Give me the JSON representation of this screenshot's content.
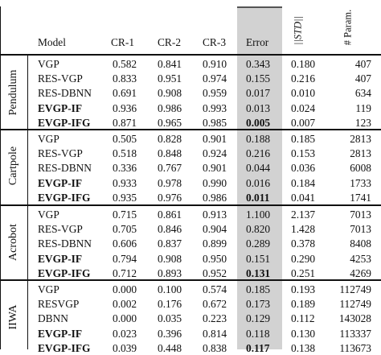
{
  "header": {
    "model": "Model",
    "cr1": "CR-1",
    "cr2": "CR-2",
    "cr3": "CR-3",
    "error": "Error",
    "std": "||STD||",
    "params": "# Param."
  },
  "groups": [
    {
      "name": "Pendulum",
      "rows": [
        {
          "model": "VGP",
          "bold": false,
          "cr1": "0.582",
          "cr2": "0.841",
          "cr3": "0.910",
          "error": "0.343",
          "error_bold": false,
          "std": "0.180",
          "params": "407"
        },
        {
          "model": "RES-VGP",
          "bold": false,
          "cr1": "0.833",
          "cr2": "0.951",
          "cr3": "0.974",
          "error": "0.155",
          "error_bold": false,
          "std": "0.216",
          "params": "407"
        },
        {
          "model": "RES-DBNN",
          "bold": false,
          "cr1": "0.691",
          "cr2": "0.908",
          "cr3": "0.959",
          "error": "0.017",
          "error_bold": false,
          "std": "0.010",
          "params": "634"
        },
        {
          "model": "EVGP-IF",
          "bold": true,
          "cr1": "0.936",
          "cr2": "0.986",
          "cr3": "0.993",
          "error": "0.013",
          "error_bold": false,
          "std": "0.024",
          "params": "119"
        },
        {
          "model": "EVGP-IFG",
          "bold": true,
          "cr1": "0.871",
          "cr2": "0.965",
          "cr3": "0.985",
          "error": "0.005",
          "error_bold": true,
          "std": "0.007",
          "params": "123"
        }
      ]
    },
    {
      "name": "Cartpole",
      "rows": [
        {
          "model": "VGP",
          "bold": false,
          "cr1": "0.505",
          "cr2": "0.828",
          "cr3": "0.901",
          "error": "0.188",
          "error_bold": false,
          "std": "0.185",
          "params": "2813"
        },
        {
          "model": "RES-VGP",
          "bold": false,
          "cr1": "0.518",
          "cr2": "0.848",
          "cr3": "0.924",
          "error": "0.216",
          "error_bold": false,
          "std": "0.153",
          "params": "2813"
        },
        {
          "model": "RES-DBNN",
          "bold": false,
          "cr1": "0.336",
          "cr2": "0.767",
          "cr3": "0.901",
          "error": "0.044",
          "error_bold": false,
          "std": "0.036",
          "params": "6008"
        },
        {
          "model": "EVGP-IF",
          "bold": true,
          "cr1": "0.933",
          "cr2": "0.978",
          "cr3": "0.990",
          "error": "0.016",
          "error_bold": false,
          "std": "0.184",
          "params": "1733"
        },
        {
          "model": "EVGP-IFG",
          "bold": true,
          "cr1": "0.935",
          "cr2": "0.976",
          "cr3": "0.986",
          "error": "0.011",
          "error_bold": true,
          "std": "0.041",
          "params": "1741"
        }
      ]
    },
    {
      "name": "Acrobot",
      "rows": [
        {
          "model": "VGP",
          "bold": false,
          "cr1": "0.715",
          "cr2": "0.861",
          "cr3": "0.913",
          "error": "1.100",
          "error_bold": false,
          "std": "2.137",
          "params": "7013"
        },
        {
          "model": "RES-VGP",
          "bold": false,
          "cr1": "0.705",
          "cr2": "0.846",
          "cr3": "0.904",
          "error": "0.820",
          "error_bold": false,
          "std": "1.428",
          "params": "7013"
        },
        {
          "model": "RES-DBNN",
          "bold": false,
          "cr1": "0.606",
          "cr2": "0.837",
          "cr3": "0.899",
          "error": "0.289",
          "error_bold": false,
          "std": "0.378",
          "params": "8408"
        },
        {
          "model": "EVGP-IF",
          "bold": true,
          "cr1": "0.794",
          "cr2": "0.908",
          "cr3": "0.950",
          "error": "0.151",
          "error_bold": false,
          "std": "0.290",
          "params": "4253"
        },
        {
          "model": "EVGP-IFG",
          "bold": true,
          "cr1": "0.712",
          "cr2": "0.893",
          "cr3": "0.952",
          "error": "0.131",
          "error_bold": true,
          "std": "0.251",
          "params": "4269"
        }
      ]
    },
    {
      "name": "IIWA",
      "rows": [
        {
          "model": "VGP",
          "bold": false,
          "cr1": "0.000",
          "cr2": "0.100",
          "cr3": "0.574",
          "error": "0.185",
          "error_bold": false,
          "std": "0.193",
          "params": "112749"
        },
        {
          "model": "RESVGP",
          "bold": false,
          "cr1": "0.002",
          "cr2": "0.176",
          "cr3": "0.672",
          "error": "0.173",
          "error_bold": false,
          "std": "0.189",
          "params": "112749"
        },
        {
          "model": "DBNN",
          "bold": false,
          "cr1": "0.000",
          "cr2": "0.035",
          "cr3": "0.223",
          "error": "0.129",
          "error_bold": false,
          "std": "0.112",
          "params": "143028"
        },
        {
          "model": "EVGP-IF",
          "bold": true,
          "cr1": "0.023",
          "cr2": "0.396",
          "cr3": "0.814",
          "error": "0.118",
          "error_bold": false,
          "std": "0.130",
          "params": "113337"
        },
        {
          "model": "EVGP-IFG",
          "bold": true,
          "cr1": "0.039",
          "cr2": "0.448",
          "cr3": "0.838",
          "error": "0.117",
          "error_bold": true,
          "std": "0.138",
          "params": "113673"
        }
      ]
    }
  ]
}
